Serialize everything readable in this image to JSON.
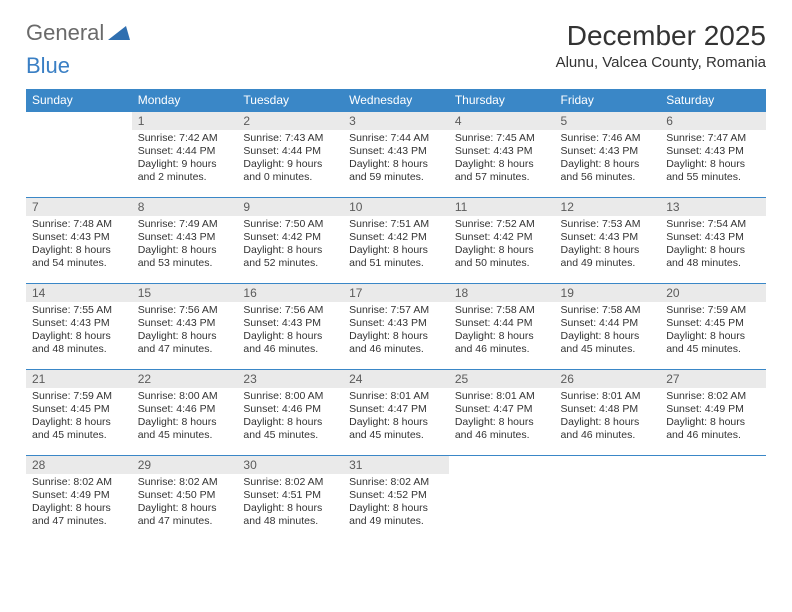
{
  "logo": {
    "text1": "General",
    "text2": "Blue",
    "triangle_color": "#2f6fb0"
  },
  "title": "December 2025",
  "location": "Alunu, Valcea County, Romania",
  "colors": {
    "header_bg": "#3a87c7",
    "header_fg": "#ffffff",
    "daynum_bg": "#eaeaea",
    "daynum_fg": "#5b5b5b",
    "row_border": "#3a87c7",
    "body_text": "#333333",
    "page_bg": "#ffffff"
  },
  "weekdays": [
    "Sunday",
    "Monday",
    "Tuesday",
    "Wednesday",
    "Thursday",
    "Friday",
    "Saturday"
  ],
  "weeks": [
    [
      null,
      {
        "n": "1",
        "sr": "Sunrise: 7:42 AM",
        "ss": "Sunset: 4:44 PM",
        "d1": "Daylight: 9 hours",
        "d2": "and 2 minutes."
      },
      {
        "n": "2",
        "sr": "Sunrise: 7:43 AM",
        "ss": "Sunset: 4:44 PM",
        "d1": "Daylight: 9 hours",
        "d2": "and 0 minutes."
      },
      {
        "n": "3",
        "sr": "Sunrise: 7:44 AM",
        "ss": "Sunset: 4:43 PM",
        "d1": "Daylight: 8 hours",
        "d2": "and 59 minutes."
      },
      {
        "n": "4",
        "sr": "Sunrise: 7:45 AM",
        "ss": "Sunset: 4:43 PM",
        "d1": "Daylight: 8 hours",
        "d2": "and 57 minutes."
      },
      {
        "n": "5",
        "sr": "Sunrise: 7:46 AM",
        "ss": "Sunset: 4:43 PM",
        "d1": "Daylight: 8 hours",
        "d2": "and 56 minutes."
      },
      {
        "n": "6",
        "sr": "Sunrise: 7:47 AM",
        "ss": "Sunset: 4:43 PM",
        "d1": "Daylight: 8 hours",
        "d2": "and 55 minutes."
      }
    ],
    [
      {
        "n": "7",
        "sr": "Sunrise: 7:48 AM",
        "ss": "Sunset: 4:43 PM",
        "d1": "Daylight: 8 hours",
        "d2": "and 54 minutes."
      },
      {
        "n": "8",
        "sr": "Sunrise: 7:49 AM",
        "ss": "Sunset: 4:43 PM",
        "d1": "Daylight: 8 hours",
        "d2": "and 53 minutes."
      },
      {
        "n": "9",
        "sr": "Sunrise: 7:50 AM",
        "ss": "Sunset: 4:42 PM",
        "d1": "Daylight: 8 hours",
        "d2": "and 52 minutes."
      },
      {
        "n": "10",
        "sr": "Sunrise: 7:51 AM",
        "ss": "Sunset: 4:42 PM",
        "d1": "Daylight: 8 hours",
        "d2": "and 51 minutes."
      },
      {
        "n": "11",
        "sr": "Sunrise: 7:52 AM",
        "ss": "Sunset: 4:42 PM",
        "d1": "Daylight: 8 hours",
        "d2": "and 50 minutes."
      },
      {
        "n": "12",
        "sr": "Sunrise: 7:53 AM",
        "ss": "Sunset: 4:43 PM",
        "d1": "Daylight: 8 hours",
        "d2": "and 49 minutes."
      },
      {
        "n": "13",
        "sr": "Sunrise: 7:54 AM",
        "ss": "Sunset: 4:43 PM",
        "d1": "Daylight: 8 hours",
        "d2": "and 48 minutes."
      }
    ],
    [
      {
        "n": "14",
        "sr": "Sunrise: 7:55 AM",
        "ss": "Sunset: 4:43 PM",
        "d1": "Daylight: 8 hours",
        "d2": "and 48 minutes."
      },
      {
        "n": "15",
        "sr": "Sunrise: 7:56 AM",
        "ss": "Sunset: 4:43 PM",
        "d1": "Daylight: 8 hours",
        "d2": "and 47 minutes."
      },
      {
        "n": "16",
        "sr": "Sunrise: 7:56 AM",
        "ss": "Sunset: 4:43 PM",
        "d1": "Daylight: 8 hours",
        "d2": "and 46 minutes."
      },
      {
        "n": "17",
        "sr": "Sunrise: 7:57 AM",
        "ss": "Sunset: 4:43 PM",
        "d1": "Daylight: 8 hours",
        "d2": "and 46 minutes."
      },
      {
        "n": "18",
        "sr": "Sunrise: 7:58 AM",
        "ss": "Sunset: 4:44 PM",
        "d1": "Daylight: 8 hours",
        "d2": "and 46 minutes."
      },
      {
        "n": "19",
        "sr": "Sunrise: 7:58 AM",
        "ss": "Sunset: 4:44 PM",
        "d1": "Daylight: 8 hours",
        "d2": "and 45 minutes."
      },
      {
        "n": "20",
        "sr": "Sunrise: 7:59 AM",
        "ss": "Sunset: 4:45 PM",
        "d1": "Daylight: 8 hours",
        "d2": "and 45 minutes."
      }
    ],
    [
      {
        "n": "21",
        "sr": "Sunrise: 7:59 AM",
        "ss": "Sunset: 4:45 PM",
        "d1": "Daylight: 8 hours",
        "d2": "and 45 minutes."
      },
      {
        "n": "22",
        "sr": "Sunrise: 8:00 AM",
        "ss": "Sunset: 4:46 PM",
        "d1": "Daylight: 8 hours",
        "d2": "and 45 minutes."
      },
      {
        "n": "23",
        "sr": "Sunrise: 8:00 AM",
        "ss": "Sunset: 4:46 PM",
        "d1": "Daylight: 8 hours",
        "d2": "and 45 minutes."
      },
      {
        "n": "24",
        "sr": "Sunrise: 8:01 AM",
        "ss": "Sunset: 4:47 PM",
        "d1": "Daylight: 8 hours",
        "d2": "and 45 minutes."
      },
      {
        "n": "25",
        "sr": "Sunrise: 8:01 AM",
        "ss": "Sunset: 4:47 PM",
        "d1": "Daylight: 8 hours",
        "d2": "and 46 minutes."
      },
      {
        "n": "26",
        "sr": "Sunrise: 8:01 AM",
        "ss": "Sunset: 4:48 PM",
        "d1": "Daylight: 8 hours",
        "d2": "and 46 minutes."
      },
      {
        "n": "27",
        "sr": "Sunrise: 8:02 AM",
        "ss": "Sunset: 4:49 PM",
        "d1": "Daylight: 8 hours",
        "d2": "and 46 minutes."
      }
    ],
    [
      {
        "n": "28",
        "sr": "Sunrise: 8:02 AM",
        "ss": "Sunset: 4:49 PM",
        "d1": "Daylight: 8 hours",
        "d2": "and 47 minutes."
      },
      {
        "n": "29",
        "sr": "Sunrise: 8:02 AM",
        "ss": "Sunset: 4:50 PM",
        "d1": "Daylight: 8 hours",
        "d2": "and 47 minutes."
      },
      {
        "n": "30",
        "sr": "Sunrise: 8:02 AM",
        "ss": "Sunset: 4:51 PM",
        "d1": "Daylight: 8 hours",
        "d2": "and 48 minutes."
      },
      {
        "n": "31",
        "sr": "Sunrise: 8:02 AM",
        "ss": "Sunset: 4:52 PM",
        "d1": "Daylight: 8 hours",
        "d2": "and 49 minutes."
      },
      null,
      null,
      null
    ]
  ]
}
